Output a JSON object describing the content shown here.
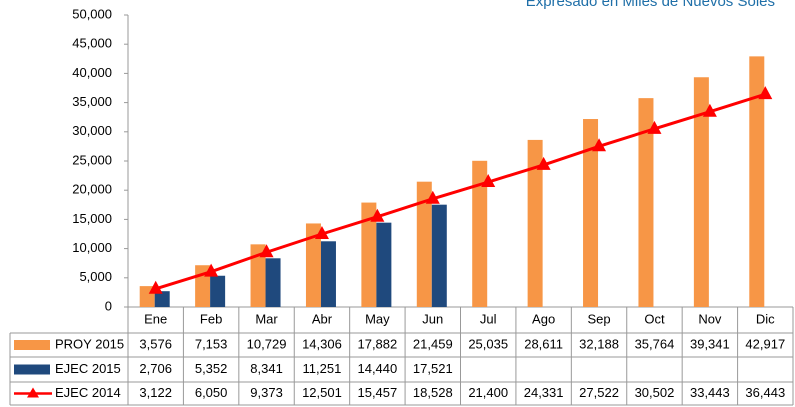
{
  "chart_data": {
    "type": "bar",
    "subtitle": "Expresado en Miles de Nuevos Soles",
    "categories": [
      "Ene",
      "Feb",
      "Mar",
      "Abr",
      "May",
      "Jun",
      "Jul",
      "Ago",
      "Sep",
      "Oct",
      "Nov",
      "Dic"
    ],
    "series": [
      {
        "name": "PROY 2015",
        "type": "bar",
        "color": "#f79646",
        "values": [
          3576,
          7153,
          10729,
          14306,
          17882,
          21459,
          25035,
          28611,
          32188,
          35764,
          39341,
          42917
        ],
        "value_labels": [
          "3,576",
          "7,153",
          "10,729",
          "14,306",
          "17,882",
          "21,459",
          "25,035",
          "28,611",
          "32,188",
          "35,764",
          "39,341",
          "42,917"
        ]
      },
      {
        "name": "EJEC 2015",
        "type": "bar",
        "color": "#1f497d",
        "values": [
          2706,
          5352,
          8341,
          11251,
          14440,
          17521,
          null,
          null,
          null,
          null,
          null,
          null
        ],
        "value_labels": [
          "2,706",
          "5,352",
          "8,341",
          "11,251",
          "14,440",
          "17,521",
          null,
          null,
          null,
          null,
          null,
          null
        ]
      },
      {
        "name": "EJEC 2014",
        "type": "line",
        "color": "#ff0000",
        "values": [
          3122,
          6050,
          9373,
          12501,
          15457,
          18528,
          21400,
          24331,
          27522,
          30502,
          33443,
          36443
        ],
        "value_labels": [
          "3,122",
          "6,050",
          "9,373",
          "12,501",
          "15,457",
          "18,528",
          "21,400",
          "24,331",
          "27,522",
          "30,502",
          "33,443",
          "36,443"
        ]
      }
    ],
    "ylim": [
      0,
      50000
    ],
    "yticks": [
      0,
      {
        "value": 5000,
        "label": "5,000"
      },
      {
        "value": 10000,
        "label": "10,000"
      },
      {
        "value": 15000,
        "label": "15,000"
      },
      {
        "value": 20000,
        "label": "20,000"
      },
      {
        "value": 25000,
        "label": "25,000"
      },
      {
        "value": 30000,
        "label": "30,000"
      },
      {
        "value": 35000,
        "label": "35,000"
      },
      {
        "value": 40000,
        "label": "40,000"
      },
      {
        "value": 45000,
        "label": "45,000"
      },
      {
        "value": 50000,
        "label": "50,000"
      }
    ],
    "grid": false
  }
}
